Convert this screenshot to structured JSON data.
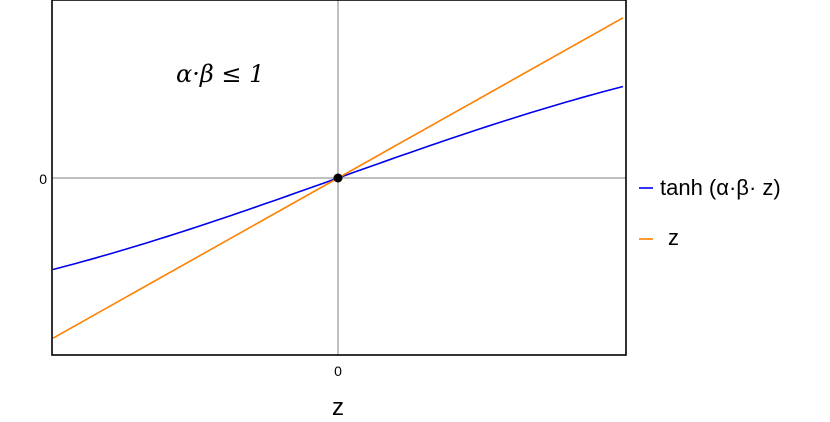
{
  "chart_data": {
    "type": "line",
    "title": "",
    "xlabel": "z",
    "ylabel": "",
    "xlim": [
      -1,
      1
    ],
    "ylim": [
      -1,
      1
    ],
    "x_ticks": [
      {
        "value": 0,
        "label": "0"
      }
    ],
    "y_ticks": [
      {
        "value": 0,
        "label": "0"
      }
    ],
    "grid": false,
    "axes_lines_through_origin": true,
    "legend_position": "right",
    "annotation": "α·β ≤ 1",
    "marked_point": {
      "x": 0,
      "y": 0
    },
    "series": [
      {
        "name": "tanh (α·β· z)",
        "color": "#0000ee",
        "x": [
          -0.95,
          -0.8,
          -0.6,
          -0.4,
          -0.2,
          0,
          0.2,
          0.4,
          0.6,
          0.8,
          0.95
        ],
        "y": [
          -0.52,
          -0.47,
          -0.38,
          -0.27,
          -0.14,
          0,
          0.14,
          0.27,
          0.38,
          0.47,
          0.52
        ]
      },
      {
        "name": "z",
        "color": "#ff8000",
        "x": [
          -0.95,
          0.95
        ],
        "y": [
          -0.91,
          0.91
        ]
      }
    ]
  }
}
